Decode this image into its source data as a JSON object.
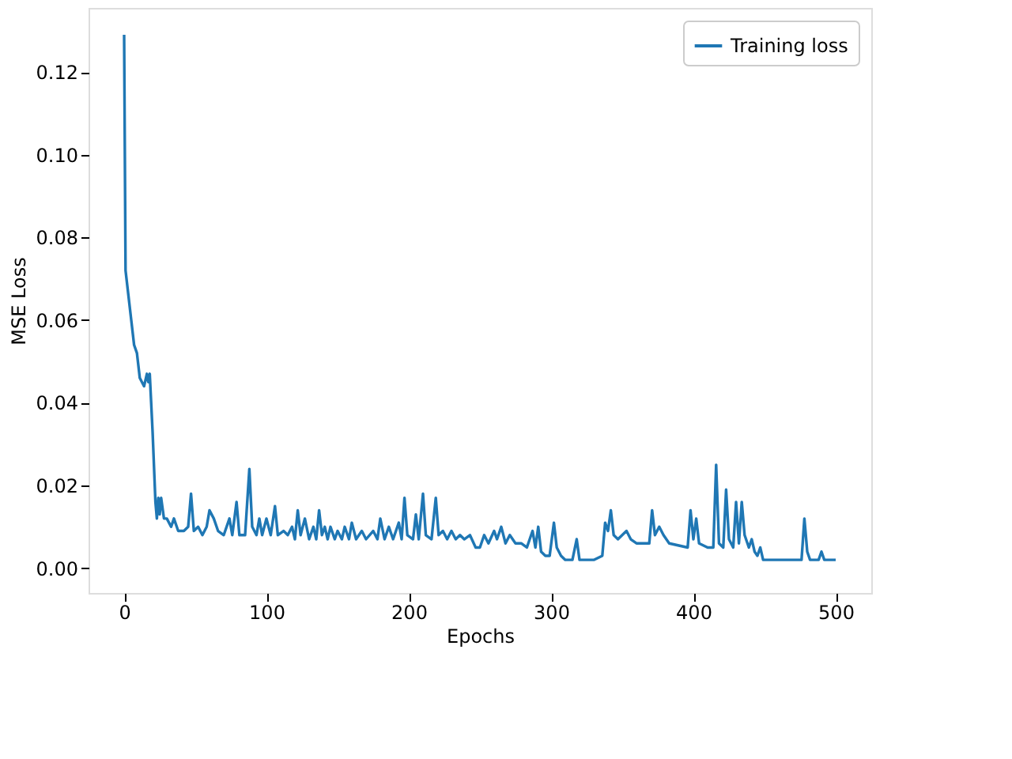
{
  "chart_data": {
    "type": "line",
    "xlabel": "Epochs",
    "ylabel": "MSE Loss",
    "xlim": [
      -25,
      525
    ],
    "xticks": [
      0,
      100,
      200,
      300,
      400,
      500
    ],
    "ylim": [
      -0.006,
      0.1355
    ],
    "yticks": [
      {
        "value": 0,
        "label": "0.00"
      },
      {
        "value": 0.02,
        "label": "0.02"
      },
      {
        "value": 0.04,
        "label": "0.04"
      },
      {
        "value": 0.06,
        "label": "0.06"
      },
      {
        "value": 0.08,
        "label": "0.08"
      },
      {
        "value": 0.1,
        "label": "0.10"
      },
      {
        "value": 0.12,
        "label": "0.12"
      }
    ],
    "legend": "top right",
    "grid": false,
    "marker": "none",
    "line_style": "solid",
    "series": [
      {
        "name": "Training loss",
        "color": "#1f77b4",
        "x": [
          0,
          1,
          3,
          5,
          7,
          9,
          11,
          14,
          16,
          17,
          18,
          20,
          22,
          23,
          24,
          25,
          26,
          28,
          30,
          33,
          35,
          38,
          42,
          45,
          47,
          49,
          52,
          55,
          58,
          60,
          63,
          66,
          70,
          74,
          76,
          79,
          81,
          85,
          88,
          90,
          93,
          95,
          97,
          100,
          103,
          106,
          108,
          112,
          115,
          118,
          120,
          122,
          124,
          127,
          130,
          133,
          135,
          137,
          139,
          141,
          143,
          145,
          148,
          150,
          153,
          155,
          158,
          160,
          163,
          167,
          170,
          175,
          178,
          180,
          183,
          186,
          189,
          193,
          195,
          197,
          199,
          203,
          205,
          207,
          210,
          212,
          216,
          219,
          221,
          224,
          227,
          230,
          233,
          236,
          239,
          243,
          247,
          250,
          253,
          256,
          260,
          262,
          265,
          268,
          271,
          275,
          279,
          283,
          287,
          289,
          291,
          293,
          296,
          299,
          302,
          304,
          307,
          310,
          315,
          318,
          320,
          330,
          336,
          338,
          340,
          342,
          344,
          347,
          350,
          353,
          356,
          360,
          365,
          369,
          371,
          373,
          376,
          379,
          383,
          396,
          398,
          400,
          402,
          404,
          410,
          414,
          416,
          418,
          421,
          423,
          425,
          428,
          430,
          432,
          434,
          436,
          439,
          441,
          443,
          445,
          447,
          449,
          460,
          476,
          478,
          480,
          482,
          488,
          490,
          492,
          500
        ],
        "values": [
          0.129,
          0.072,
          0.066,
          0.06,
          0.054,
          0.052,
          0.046,
          0.044,
          0.047,
          0.045,
          0.047,
          0.033,
          0.016,
          0.012,
          0.017,
          0.013,
          0.017,
          0.012,
          0.012,
          0.01,
          0.012,
          0.009,
          0.009,
          0.01,
          0.018,
          0.009,
          0.01,
          0.008,
          0.01,
          0.014,
          0.012,
          0.009,
          0.008,
          0.012,
          0.008,
          0.016,
          0.008,
          0.008,
          0.024,
          0.01,
          0.008,
          0.012,
          0.008,
          0.012,
          0.008,
          0.015,
          0.008,
          0.009,
          0.008,
          0.01,
          0.007,
          0.014,
          0.008,
          0.012,
          0.007,
          0.01,
          0.007,
          0.014,
          0.008,
          0.01,
          0.007,
          0.01,
          0.007,
          0.009,
          0.007,
          0.01,
          0.007,
          0.011,
          0.007,
          0.009,
          0.007,
          0.009,
          0.007,
          0.012,
          0.007,
          0.01,
          0.007,
          0.011,
          0.007,
          0.017,
          0.008,
          0.007,
          0.013,
          0.007,
          0.018,
          0.008,
          0.007,
          0.017,
          0.008,
          0.009,
          0.007,
          0.009,
          0.007,
          0.008,
          0.007,
          0.008,
          0.005,
          0.005,
          0.008,
          0.006,
          0.009,
          0.007,
          0.01,
          0.006,
          0.008,
          0.006,
          0.006,
          0.005,
          0.009,
          0.005,
          0.01,
          0.004,
          0.003,
          0.003,
          0.011,
          0.005,
          0.003,
          0.002,
          0.002,
          0.007,
          0.002,
          0.002,
          0.003,
          0.011,
          0.009,
          0.014,
          0.008,
          0.007,
          0.008,
          0.009,
          0.007,
          0.006,
          0.006,
          0.006,
          0.014,
          0.008,
          0.01,
          0.008,
          0.006,
          0.005,
          0.014,
          0.007,
          0.012,
          0.006,
          0.005,
          0.005,
          0.025,
          0.006,
          0.005,
          0.019,
          0.007,
          0.005,
          0.016,
          0.006,
          0.016,
          0.008,
          0.005,
          0.007,
          0.004,
          0.003,
          0.005,
          0.002,
          0.002,
          0.002,
          0.012,
          0.004,
          0.002,
          0.002,
          0.004,
          0.002,
          0.002
        ]
      }
    ]
  }
}
